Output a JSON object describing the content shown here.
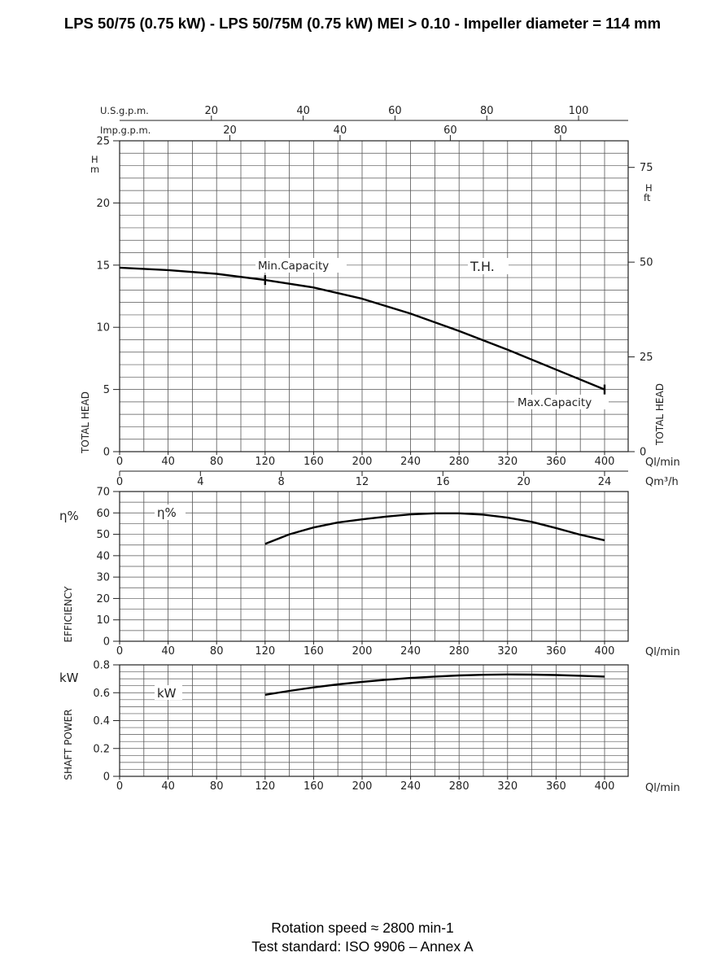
{
  "title": "LPS 50/75 (0.75 kW) - LPS 50/75M (0.75 kW) MEI > 0.10 - Impeller diameter = 114 mm",
  "footer": {
    "rotation": "Rotation speed ≈ 2800 min-1",
    "standard": "Test standard: ISO 9906 – Annex A"
  },
  "chart_data": [
    {
      "type": "line",
      "panel": "head",
      "x_unit": "Ql/min",
      "x_unit_secondary": "Qm³/h",
      "y_unit": "H m",
      "y_unit_secondary": "H ft",
      "ylabel": "TOTAL HEAD",
      "ylabel_right": "TOTAL HEAD",
      "top_axis_usgpm_label": "U.S.g.p.m.",
      "top_axis_impgpm_label": "Imp.g.p.m.",
      "xlim": [
        0,
        420
      ],
      "ylim": [
        0,
        25
      ],
      "x_ticks": [
        0,
        40,
        80,
        120,
        160,
        200,
        240,
        280,
        320,
        360,
        400
      ],
      "y_ticks": [
        0,
        5,
        10,
        15,
        20,
        25
      ],
      "m3h_ticks": [
        0,
        4,
        8,
        12,
        16,
        20,
        24
      ],
      "usgpm_ticks": [
        20,
        40,
        60,
        80,
        100
      ],
      "impgpm_ticks": [
        20,
        40,
        60,
        80
      ],
      "ft_ticks": [
        0,
        25,
        50,
        75
      ],
      "grid": true,
      "annotations": {
        "curve_label": "T.H.",
        "min_capacity": "Min.Capacity",
        "max_capacity": "Max.Capacity"
      },
      "min_capacity_x": 120,
      "max_capacity_x": 400,
      "series": [
        {
          "x": [
            0,
            40,
            80,
            120,
            160,
            200,
            240,
            280,
            320,
            360,
            400
          ],
          "values": [
            14.8,
            14.6,
            14.3,
            13.8,
            13.2,
            12.3,
            11.1,
            9.7,
            8.2,
            6.6,
            5.0
          ]
        }
      ]
    },
    {
      "type": "line",
      "panel": "efficiency",
      "x_unit": "Ql/min",
      "y_unit": "η%",
      "ylabel": "EFFICIENCY",
      "curve_label": "η%",
      "xlim": [
        0,
        420
      ],
      "ylim": [
        0,
        70
      ],
      "x_ticks": [
        0,
        40,
        80,
        120,
        160,
        200,
        240,
        280,
        320,
        360,
        400
      ],
      "y_ticks": [
        0,
        10,
        20,
        30,
        40,
        50,
        60,
        70
      ],
      "grid": true,
      "series": [
        {
          "x": [
            120,
            140,
            160,
            180,
            200,
            220,
            240,
            260,
            280,
            300,
            320,
            340,
            360,
            380,
            400
          ],
          "values": [
            45.5,
            50,
            53.2,
            55.5,
            57,
            58.3,
            59.3,
            59.8,
            59.8,
            59.2,
            57.8,
            55.8,
            52.9,
            49.8,
            47.2
          ]
        }
      ]
    },
    {
      "type": "line",
      "panel": "shaft_power",
      "x_unit": "Ql/min",
      "y_unit": "kW",
      "ylabel": "SHAFT POWER",
      "curve_label": "kW",
      "xlim": [
        0,
        420
      ],
      "ylim": [
        0,
        0.8
      ],
      "x_ticks": [
        0,
        40,
        80,
        120,
        160,
        200,
        240,
        280,
        320,
        360,
        400
      ],
      "y_ticks": [
        "0",
        "0.2",
        "0.4",
        "0.6",
        "0.8"
      ],
      "grid": true,
      "series": [
        {
          "x": [
            120,
            140,
            160,
            180,
            200,
            220,
            240,
            260,
            280,
            300,
            320,
            340,
            360,
            380,
            400
          ],
          "values": [
            0.585,
            0.613,
            0.638,
            0.66,
            0.678,
            0.693,
            0.706,
            0.716,
            0.724,
            0.729,
            0.731,
            0.73,
            0.727,
            0.722,
            0.716
          ]
        }
      ]
    }
  ]
}
